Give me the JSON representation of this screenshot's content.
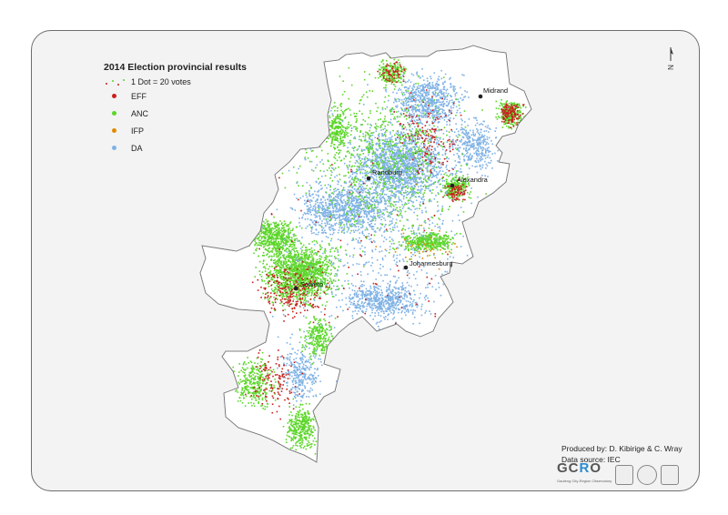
{
  "legend": {
    "title": "2014 Election provincial results",
    "dot_scale_label": "1 Dot = 20 votes",
    "items": [
      {
        "label": "EFF",
        "color": "#c8201e"
      },
      {
        "label": "ANC",
        "color": "#5cd62a"
      },
      {
        "label": "IFP",
        "color": "#e08a00"
      },
      {
        "label": "DA",
        "color": "#7fb2e5"
      }
    ]
  },
  "places": [
    {
      "name": "Midrand",
      "id": "midrand"
    },
    {
      "name": "Randburg",
      "id": "randburg"
    },
    {
      "name": "Alexandra",
      "id": "alexandra"
    },
    {
      "name": "Johannesburg",
      "id": "johannesburg"
    },
    {
      "name": "Soweto",
      "id": "soweto"
    }
  ],
  "north_arrow": {
    "label": "N",
    "icon": "north-arrow-icon"
  },
  "credits": {
    "produced_by": "Produced by: D. Kibirige & C. Wray",
    "data_source": "Data source: IEC"
  },
  "logos": {
    "gcro_text": "GCRO",
    "gcro_subtitle": "Gauteng City-Region Observatory"
  },
  "colors": {
    "frame_bg": "#f3f3f3",
    "boundary_fill": "#ffffff",
    "boundary_stroke": "#7a7a7a"
  }
}
